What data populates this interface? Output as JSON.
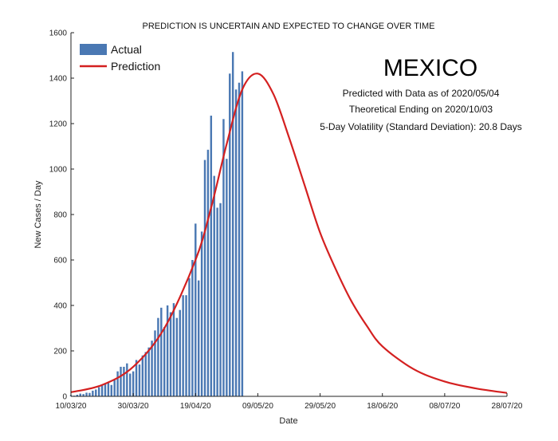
{
  "chart_data": {
    "type": "bar",
    "title": "PREDICTION IS UNCERTAIN AND EXPECTED TO CHANGE OVER TIME",
    "xlabel": "Date",
    "ylabel": "New Cases / Day",
    "ylim": [
      0,
      1600
    ],
    "yticks": [
      0,
      200,
      400,
      600,
      800,
      1000,
      1200,
      1400,
      1600
    ],
    "x_tick_labels": [
      "10/03/20",
      "30/03/20",
      "19/04/20",
      "09/05/20",
      "29/05/20",
      "18/06/20",
      "08/07/20",
      "28/07/20"
    ],
    "grid": false,
    "legend_position": "top-left",
    "annotations": {
      "country": "MEXICO",
      "line1": "Predicted with Data as of 2020/05/04",
      "line2": "Theoretical Ending on 2020/10/03",
      "line3": "5-Day Volatility (Standard Deviation): 20.8 Days"
    },
    "colors": {
      "actual": "#4a78b3",
      "prediction": "#d42020"
    },
    "series": [
      {
        "name": "Actual",
        "type": "bar",
        "x_start": "2020-03-10",
        "values": [
          5,
          3,
          7,
          12,
          10,
          16,
          15,
          25,
          30,
          40,
          48,
          55,
          62,
          50,
          75,
          110,
          130,
          130,
          145,
          100,
          110,
          160,
          140,
          180,
          195,
          215,
          245,
          290,
          345,
          390,
          305,
          400,
          370,
          410,
          345,
          380,
          445,
          445,
          520,
          600,
          760,
          510,
          725,
          1040,
          1085,
          1235,
          970,
          830,
          850,
          1220,
          1045,
          1420,
          1515,
          1350,
          1380,
          1430
        ]
      },
      {
        "name": "Prediction",
        "type": "line",
        "x": [
          "2020-03-10",
          "2020-03-20",
          "2020-03-30",
          "2020-04-09",
          "2020-04-19",
          "2020-04-24",
          "2020-04-29",
          "2020-05-04",
          "2020-05-09",
          "2020-05-14",
          "2020-05-19",
          "2020-05-24",
          "2020-05-29",
          "2020-06-03",
          "2020-06-08",
          "2020-06-13",
          "2020-06-18",
          "2020-06-28",
          "2020-07-08",
          "2020-07-18",
          "2020-07-28"
        ],
        "values": [
          18,
          50,
          130,
          300,
          600,
          830,
          1110,
          1350,
          1420,
          1330,
          1140,
          930,
          720,
          560,
          420,
          310,
          220,
          120,
          65,
          35,
          15
        ]
      }
    ]
  }
}
